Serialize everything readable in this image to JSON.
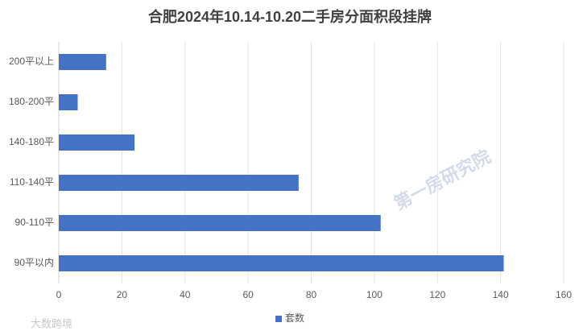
{
  "chart_data": {
    "type": "bar",
    "orientation": "horizontal",
    "title": "合肥2024年10.14-10.20二手房分面积段挂牌",
    "categories": [
      "200平以上",
      "180-200平",
      "140-180平",
      "110-140平",
      "90-110平",
      "90平以内"
    ],
    "series": [
      {
        "name": "套数",
        "color": "#4472c4",
        "values": [
          15,
          6,
          24,
          76,
          102,
          141
        ]
      }
    ],
    "xlim": [
      0,
      160
    ],
    "xticks": [
      0,
      20,
      40,
      60,
      80,
      100,
      120,
      140,
      160
    ],
    "grid": true,
    "legend": "bottom",
    "annotations": [
      "第一房研究院",
      "大数跨境"
    ]
  }
}
